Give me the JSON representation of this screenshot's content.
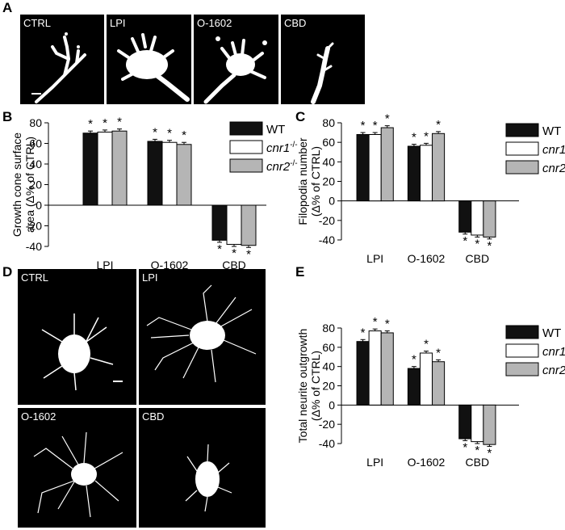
{
  "panels": {
    "A": {
      "letter": "A",
      "labels": [
        "CTRL",
        "LPI",
        "O-1602",
        "CBD"
      ]
    },
    "B": {
      "letter": "B"
    },
    "C": {
      "letter": "C"
    },
    "D": {
      "letter": "D",
      "labels": [
        "CTRL",
        "LPI",
        "O-1602",
        "CBD"
      ]
    },
    "E": {
      "letter": "E"
    }
  },
  "colors": {
    "wt": "#111111",
    "cnr1": "#ffffff",
    "cnr2": "#b5b5b5",
    "micrograph_bg": "#000000",
    "cell": "#ffffff"
  },
  "legend": [
    {
      "base": "WT",
      "sup": ""
    },
    {
      "base": "cnr1",
      "sup": "-/-"
    },
    {
      "base": "cnr2",
      "sup": "-/-"
    }
  ],
  "chart_data": [
    {
      "id": "B",
      "type": "bar",
      "categories": [
        "LPI",
        "O-1602",
        "CBD"
      ],
      "ylabel_lines": [
        "Growth cone surface",
        "area (Δ% of CTRL)"
      ],
      "ylim": [
        -40,
        80
      ],
      "yticks": [
        -40,
        -20,
        0,
        20,
        40,
        60,
        80
      ],
      "series": [
        {
          "name": "WT",
          "values": [
            70,
            62,
            -34
          ],
          "errors": [
            2,
            2,
            2
          ]
        },
        {
          "name": "cnr1-/-",
          "values": [
            71,
            61,
            -38
          ],
          "errors": [
            2,
            2,
            2
          ]
        },
        {
          "name": "cnr2-/-",
          "values": [
            72,
            59,
            -39
          ],
          "errors": [
            2,
            2,
            2
          ]
        }
      ],
      "annotation": "*",
      "legend_position": "top-right"
    },
    {
      "id": "C",
      "type": "bar",
      "categories": [
        "LPI",
        "O-1602",
        "CBD"
      ],
      "ylabel_lines": [
        "Filopodia number",
        "(Δ% of CTRL)"
      ],
      "ylim": [
        -40,
        80
      ],
      "yticks": [
        -40,
        -20,
        0,
        20,
        40,
        60,
        80
      ],
      "series": [
        {
          "name": "WT",
          "values": [
            68,
            56,
            -32
          ],
          "errors": [
            2,
            2,
            2
          ]
        },
        {
          "name": "cnr1-/-",
          "values": [
            68,
            57,
            -35
          ],
          "errors": [
            2,
            2,
            2
          ]
        },
        {
          "name": "cnr2-/-",
          "values": [
            75,
            69,
            -37
          ],
          "errors": [
            2,
            2,
            2
          ]
        }
      ],
      "annotation": "*",
      "legend_position": "top-right"
    },
    {
      "id": "E",
      "type": "bar",
      "categories": [
        "LPI",
        "O-1602",
        "CBD"
      ],
      "ylabel_lines": [
        "Total neurite outgrowth",
        "(Δ% of CTRL)"
      ],
      "ylim": [
        -40,
        80
      ],
      "yticks": [
        -40,
        -20,
        0,
        20,
        40,
        60,
        80
      ],
      "series": [
        {
          "name": "WT",
          "values": [
            66,
            38,
            -35
          ],
          "errors": [
            2,
            2,
            2
          ]
        },
        {
          "name": "cnr1-/-",
          "values": [
            77,
            54,
            -38
          ],
          "errors": [
            2,
            2,
            2
          ]
        },
        {
          "name": "cnr2-/-",
          "values": [
            75,
            45,
            -41
          ],
          "errors": [
            2,
            2,
            2
          ]
        }
      ],
      "annotation": "*",
      "legend_position": "top-right"
    }
  ]
}
